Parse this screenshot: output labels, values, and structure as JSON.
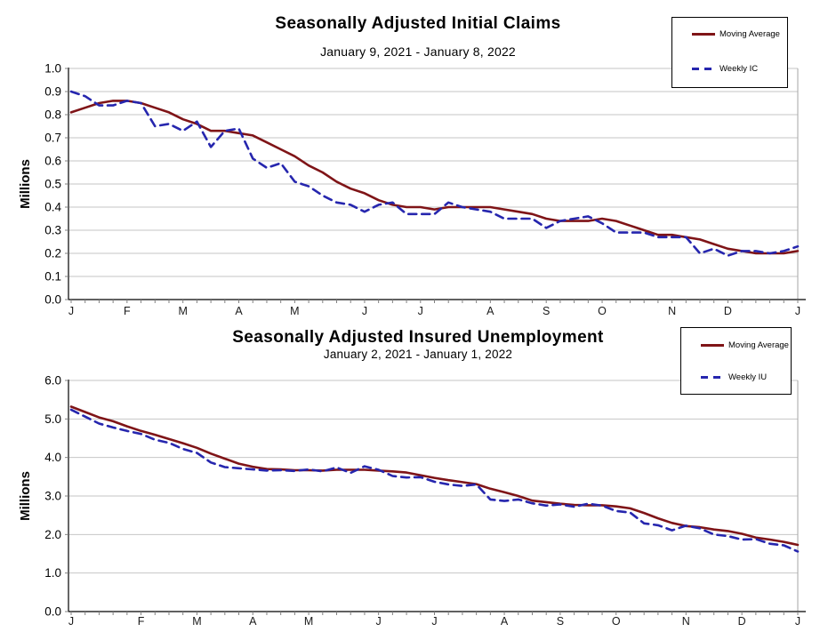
{
  "report": {
    "top_chart_name": "Seasonally Adjusted Initial Claims",
    "bottom_chart_name": "Seasonally Adjusted Insured Unemployment"
  },
  "chart_data": [
    {
      "type": "line",
      "title": "Seasonally Adjusted Initial Claims",
      "subtitle": "January 9, 2021 - January 8, 2022",
      "ylabel": "Millions",
      "ylim": [
        0.0,
        1.0
      ],
      "y_step": 0.1,
      "y_tick_labels": [
        "0.0",
        "0.1",
        "0.2",
        "0.3",
        "0.4",
        "0.5",
        "0.6",
        "0.7",
        "0.8",
        "0.9",
        "1.0"
      ],
      "x_tick_labels": [
        "J",
        "F",
        "M",
        "A",
        "M",
        "J",
        "J",
        "A",
        "S",
        "O",
        "N",
        "D",
        "J"
      ],
      "x_tick_week_indices": [
        0,
        4,
        8,
        12,
        16,
        21,
        25,
        30,
        34,
        38,
        43,
        47,
        52
      ],
      "n_weeks": 53,
      "grid": "horizontal",
      "legend_position": "top-right",
      "series": [
        {
          "name": "Moving Average",
          "color": "#7F1417",
          "dash": false,
          "values": [
            0.81,
            0.83,
            0.85,
            0.86,
            0.86,
            0.85,
            0.83,
            0.81,
            0.78,
            0.76,
            0.73,
            0.73,
            0.72,
            0.71,
            0.68,
            0.65,
            0.62,
            0.58,
            0.55,
            0.51,
            0.48,
            0.46,
            0.43,
            0.41,
            0.4,
            0.4,
            0.39,
            0.4,
            0.4,
            0.4,
            0.4,
            0.39,
            0.38,
            0.37,
            0.35,
            0.34,
            0.34,
            0.34,
            0.35,
            0.34,
            0.32,
            0.3,
            0.28,
            0.28,
            0.27,
            0.26,
            0.24,
            0.22,
            0.21,
            0.2,
            0.2,
            0.2,
            0.21
          ]
        },
        {
          "name": "Weekly IC",
          "color": "#2626AE",
          "dash": true,
          "values": [
            0.9,
            0.88,
            0.84,
            0.84,
            0.86,
            0.85,
            0.75,
            0.76,
            0.73,
            0.77,
            0.66,
            0.73,
            0.74,
            0.61,
            0.57,
            0.59,
            0.51,
            0.49,
            0.45,
            0.42,
            0.41,
            0.38,
            0.41,
            0.42,
            0.37,
            0.37,
            0.37,
            0.42,
            0.4,
            0.39,
            0.38,
            0.35,
            0.35,
            0.35,
            0.31,
            0.34,
            0.35,
            0.36,
            0.33,
            0.29,
            0.29,
            0.29,
            0.27,
            0.27,
            0.27,
            0.2,
            0.22,
            0.19,
            0.21,
            0.21,
            0.2,
            0.21,
            0.23
          ]
        }
      ]
    },
    {
      "type": "line",
      "title": "Seasonally Adjusted Insured Unemployment",
      "subtitle": "January 2, 2021 - January 1, 2022",
      "ylabel": "Millions",
      "ylim": [
        0.0,
        6.0
      ],
      "y_step": 1.0,
      "y_tick_labels": [
        "0.0",
        "1.0",
        "2.0",
        "3.0",
        "4.0",
        "5.0",
        "6.0"
      ],
      "x_tick_labels": [
        "J",
        "F",
        "M",
        "A",
        "M",
        "J",
        "J",
        "A",
        "S",
        "O",
        "N",
        "D",
        "J"
      ],
      "x_tick_week_indices": [
        0,
        5,
        9,
        13,
        17,
        22,
        26,
        31,
        35,
        39,
        44,
        48,
        52
      ],
      "n_weeks": 53,
      "grid": "horizontal",
      "legend_position": "top-right",
      "series": [
        {
          "name": "Moving Average",
          "color": "#7F1417",
          "dash": false,
          "values": [
            5.32,
            5.18,
            5.04,
            4.94,
            4.81,
            4.69,
            4.59,
            4.48,
            4.37,
            4.25,
            4.1,
            3.97,
            3.84,
            3.76,
            3.7,
            3.69,
            3.67,
            3.67,
            3.66,
            3.68,
            3.68,
            3.68,
            3.66,
            3.64,
            3.61,
            3.54,
            3.47,
            3.41,
            3.36,
            3.31,
            3.19,
            3.1,
            3.0,
            2.88,
            2.84,
            2.8,
            2.77,
            2.76,
            2.76,
            2.73,
            2.68,
            2.56,
            2.42,
            2.3,
            2.22,
            2.19,
            2.13,
            2.09,
            2.02,
            1.92,
            1.87,
            1.81,
            1.73
          ]
        },
        {
          "name": "Weekly IU",
          "color": "#2626AE",
          "dash": true,
          "values": [
            5.24,
            5.06,
            4.88,
            4.78,
            4.69,
            4.61,
            4.46,
            4.38,
            4.22,
            4.12,
            3.87,
            3.75,
            3.72,
            3.69,
            3.66,
            3.67,
            3.65,
            3.69,
            3.64,
            3.74,
            3.6,
            3.77,
            3.68,
            3.52,
            3.48,
            3.49,
            3.37,
            3.3,
            3.26,
            3.3,
            2.91,
            2.87,
            2.91,
            2.81,
            2.75,
            2.78,
            2.72,
            2.8,
            2.75,
            2.61,
            2.57,
            2.29,
            2.24,
            2.11,
            2.23,
            2.16,
            2.0,
            1.96,
            1.87,
            1.88,
            1.76,
            1.72,
            1.56
          ]
        }
      ]
    }
  ],
  "style": {
    "gridline_color": "#C6C6C6",
    "axis_color": "#000000",
    "tick_color": "#808080",
    "plot_right_border_color": "#A6A6A6"
  }
}
